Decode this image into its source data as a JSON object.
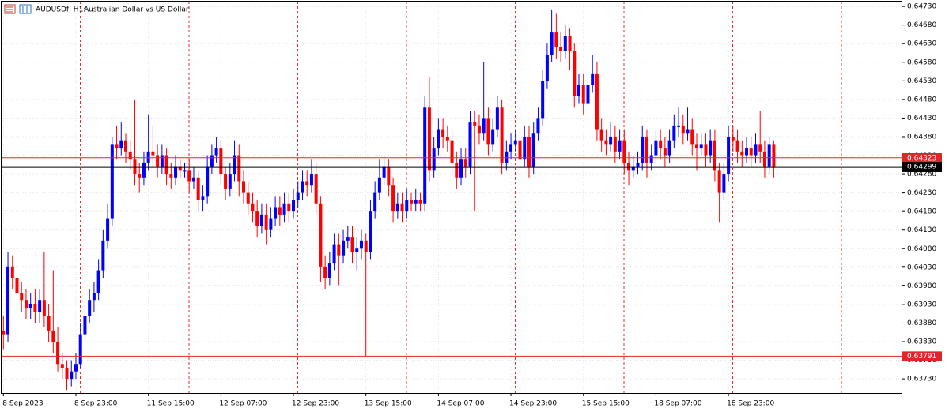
{
  "chart_data": {
    "type": "candlestick",
    "title": "AUDUSDf, H1:",
    "subtitle": "Australian Dollar vs US Dollar",
    "categories": [
      "8 Sep 2023",
      null,
      null,
      null,
      null,
      null,
      null,
      null,
      null,
      null,
      null,
      null,
      null,
      null,
      null,
      null,
      "8 Sep 23:00",
      null,
      null,
      null,
      null,
      null,
      null,
      null,
      null,
      null,
      null,
      null,
      null,
      null,
      null,
      null,
      "11 Sep 15:00",
      null,
      null,
      null,
      null,
      null,
      null,
      null,
      null,
      null,
      null,
      null,
      null,
      null,
      null,
      null,
      "12 Sep 07:00",
      null,
      null,
      null,
      null,
      null,
      null,
      null,
      null,
      null,
      null,
      null,
      null,
      null,
      null,
      null,
      "12 Sep 23:00",
      null,
      null,
      null,
      null,
      null,
      null,
      null,
      null,
      null,
      null,
      null,
      null,
      null,
      null,
      null,
      "13 Sep 15:00",
      null,
      null,
      null,
      null,
      null,
      null,
      null,
      null,
      null,
      null,
      null,
      null,
      null,
      null,
      null,
      "14 Sep 07:00",
      null,
      null,
      null,
      null,
      null,
      null,
      null,
      null,
      null,
      null,
      null,
      null,
      null,
      null,
      null,
      "14 Sep 23:00",
      null,
      null,
      null,
      null,
      null,
      null,
      null,
      null,
      null,
      null,
      null,
      null,
      null,
      null,
      null,
      "15 Sep 15:00",
      null,
      null,
      null,
      null,
      null,
      null,
      null,
      null,
      null,
      null,
      null,
      null,
      null,
      null,
      null,
      "18 Sep 07:00",
      null,
      null,
      null,
      null,
      null,
      null,
      null,
      null,
      null,
      null,
      null,
      null,
      null,
      null,
      null,
      "18 Sep 23:00",
      null,
      null,
      null,
      null,
      null,
      null,
      null,
      null,
      null,
      null
    ],
    "open": [
      0.6386,
      0.6385,
      0.6403,
      0.64,
      0.6396,
      0.6394,
      0.6392,
      0.6393,
      0.6391,
      0.6394,
      0.639,
      0.6386,
      0.6383,
      0.6377,
      0.6376,
      0.6373,
      0.6375,
      0.6377,
      0.6385,
      0.639,
      0.6394,
      0.6396,
      0.6402,
      0.641,
      0.6416,
      0.6436,
      0.6435,
      0.6437,
      0.6434,
      0.6432,
      0.6428,
      0.6427,
      0.6431,
      0.6434,
      0.6433,
      0.643,
      0.6433,
      0.6428,
      0.6427,
      0.643,
      0.6429,
      0.6429,
      0.6426,
      0.6427,
      0.6421,
      0.6422,
      0.643,
      0.6433,
      0.6435,
      0.6428,
      0.6424,
      0.6428,
      0.6433,
      0.6426,
      0.6423,
      0.642,
      0.6418,
      0.6414,
      0.6417,
      0.6413,
      0.6416,
      0.6419,
      0.6417,
      0.642,
      0.6418,
      0.6421,
      0.6423,
      0.6426,
      0.6425,
      0.6428,
      0.642,
      0.6403,
      0.64,
      0.6404,
      0.6409,
      0.6406,
      0.641,
      0.6411,
      0.6407,
      0.6408,
      0.641,
      0.6407,
      0.6418,
      0.6423,
      0.6427,
      0.643,
      0.6425,
      0.6418,
      0.642,
      0.6418,
      0.6421,
      0.642,
      0.6421,
      0.642,
      0.6446,
      0.6429,
      0.6435,
      0.644,
      0.6438,
      0.6437,
      0.6431,
      0.6427,
      0.6432,
      0.643,
      0.6442,
      0.6441,
      0.6439,
      0.6443,
      0.6436,
      0.644,
      0.6446,
      0.6431,
      0.6434,
      0.6436,
      0.6437,
      0.6432,
      0.6438,
      0.643,
      0.6439,
      0.6443,
      0.6453,
      0.646,
      0.6466,
      0.6462,
      0.6461,
      0.6465,
      0.6461,
      0.6449,
      0.6452,
      0.6447,
      0.6452,
      0.6455,
      0.644,
      0.6437,
      0.6436,
      0.6438,
      0.6434,
      0.6437,
      0.6431,
      0.6429,
      0.643,
      0.6431,
      0.6438,
      0.6431,
      0.6433,
      0.6437,
      0.6435,
      0.6433,
      0.6437,
      0.6441,
      0.6441,
      0.6439,
      0.644,
      0.6436,
      0.6435,
      0.6436,
      0.6433,
      0.6437,
      0.6429,
      0.6423,
      0.6428,
      0.6438,
      0.6437,
      0.6434,
      0.6433,
      0.6435,
      0.6433,
      0.6436,
      0.6434,
      0.643,
      0.6436
    ],
    "high": [
      0.639,
      0.6407,
      0.6406,
      0.6402,
      0.6399,
      0.6397,
      0.6396,
      0.6397,
      0.6397,
      0.6407,
      0.6393,
      0.6402,
      0.6387,
      0.638,
      0.6378,
      0.6378,
      0.638,
      0.6388,
      0.6393,
      0.6397,
      0.6399,
      0.6405,
      0.6413,
      0.642,
      0.6438,
      0.6441,
      0.6442,
      0.6439,
      0.6437,
      0.6448,
      0.6431,
      0.6434,
      0.6444,
      0.6441,
      0.6436,
      0.6436,
      0.6435,
      0.6431,
      0.6433,
      0.6432,
      0.6431,
      0.6432,
      0.643,
      0.6429,
      0.6425,
      0.6433,
      0.6436,
      0.6438,
      0.6437,
      0.643,
      0.6431,
      0.6437,
      0.6436,
      0.6429,
      0.6426,
      0.6423,
      0.6421,
      0.642,
      0.642,
      0.6419,
      0.6422,
      0.6422,
      0.6423,
      0.6423,
      0.6424,
      0.6426,
      0.6429,
      0.6429,
      0.6432,
      0.6431,
      0.6422,
      0.6406,
      0.6407,
      0.6412,
      0.6412,
      0.6413,
      0.6414,
      0.6414,
      0.6411,
      0.6413,
      0.6412,
      0.6421,
      0.6426,
      0.6432,
      0.6433,
      0.6432,
      0.6427,
      0.6423,
      0.6423,
      0.6424,
      0.6423,
      0.6424,
      0.6423,
      0.6449,
      0.6454,
      0.6438,
      0.6443,
      0.6443,
      0.6441,
      0.644,
      0.6434,
      0.6435,
      0.6435,
      0.6445,
      0.6445,
      0.6444,
      0.6458,
      0.6446,
      0.6443,
      0.6449,
      0.6448,
      0.6437,
      0.6439,
      0.644,
      0.644,
      0.6441,
      0.6441,
      0.6442,
      0.6446,
      0.6456,
      0.6463,
      0.6472,
      0.6471,
      0.6466,
      0.6468,
      0.6467,
      0.6463,
      0.6455,
      0.6455,
      0.6455,
      0.646,
      0.6458,
      0.6443,
      0.644,
      0.6442,
      0.6441,
      0.644,
      0.644,
      0.6434,
      0.6433,
      0.6434,
      0.6441,
      0.644,
      0.6436,
      0.644,
      0.644,
      0.6438,
      0.644,
      0.6444,
      0.6446,
      0.6444,
      0.6446,
      0.6443,
      0.6439,
      0.6439,
      0.6439,
      0.644,
      0.644,
      0.6431,
      0.6431,
      0.6441,
      0.6441,
      0.644,
      0.6437,
      0.6438,
      0.6438,
      0.6439,
      0.6445,
      0.6437,
      0.6438,
      0.6437
    ],
    "low": [
      0.6381,
      0.6383,
      0.6397,
      0.6393,
      0.6391,
      0.6389,
      0.6389,
      0.6388,
      0.6388,
      0.6387,
      0.6383,
      0.638,
      0.6375,
      0.6373,
      0.637,
      0.6371,
      0.6373,
      0.6376,
      0.6383,
      0.6388,
      0.6391,
      0.6394,
      0.64,
      0.6408,
      0.6414,
      0.6432,
      0.6433,
      0.6431,
      0.6429,
      0.6425,
      0.6423,
      0.6425,
      0.6429,
      0.643,
      0.6427,
      0.6428,
      0.6425,
      0.6424,
      0.6425,
      0.6427,
      0.6427,
      0.6423,
      0.6424,
      0.6418,
      0.6418,
      0.642,
      0.6428,
      0.6431,
      0.6425,
      0.6421,
      0.6422,
      0.6426,
      0.6422,
      0.642,
      0.6417,
      0.6415,
      0.6411,
      0.6412,
      0.6409,
      0.6411,
      0.6414,
      0.6414,
      0.6415,
      0.6415,
      0.6416,
      0.6419,
      0.6421,
      0.6422,
      0.6423,
      0.6417,
      0.6399,
      0.6397,
      0.6398,
      0.6402,
      0.6398,
      0.6404,
      0.6408,
      0.6404,
      0.6402,
      0.6405,
      0.63791,
      0.6405,
      0.6416,
      0.6421,
      0.6425,
      0.6422,
      0.6415,
      0.6416,
      0.6415,
      0.6416,
      0.6418,
      0.6418,
      0.6418,
      0.6418,
      0.6426,
      0.6427,
      0.6433,
      0.6435,
      0.6434,
      0.6428,
      0.6424,
      0.6425,
      0.6427,
      0.6428,
      0.6418,
      0.6436,
      0.6437,
      0.6433,
      0.6434,
      0.6438,
      0.6428,
      0.6429,
      0.6432,
      0.6434,
      0.6429,
      0.643,
      0.6427,
      0.6428,
      0.6437,
      0.6441,
      0.6451,
      0.6458,
      0.6459,
      0.6458,
      0.6459,
      0.6456,
      0.6446,
      0.6447,
      0.6444,
      0.6445,
      0.645,
      0.6437,
      0.6434,
      0.6433,
      0.6434,
      0.6431,
      0.6432,
      0.6428,
      0.6425,
      0.6427,
      0.6428,
      0.6429,
      0.6427,
      0.6429,
      0.6431,
      0.6432,
      0.643,
      0.6431,
      0.6435,
      0.6438,
      0.6436,
      0.6437,
      0.6433,
      0.6429,
      0.6433,
      0.643,
      0.6431,
      0.6426,
      0.6415,
      0.6421,
      0.6426,
      0.6434,
      0.6431,
      0.643,
      0.6431,
      0.643,
      0.6431,
      0.6431,
      0.6427,
      0.6428,
      0.6427
    ],
    "close": [
      0.6385,
      0.6403,
      0.64,
      0.6396,
      0.6394,
      0.6392,
      0.6393,
      0.6391,
      0.6394,
      0.639,
      0.6386,
      0.6383,
      0.6377,
      0.6376,
      0.6373,
      0.6375,
      0.6377,
      0.6385,
      0.639,
      0.6394,
      0.6396,
      0.6402,
      0.641,
      0.6416,
      0.6436,
      0.6435,
      0.6437,
      0.6434,
      0.6432,
      0.6428,
      0.6427,
      0.6431,
      0.6434,
      0.6433,
      0.643,
      0.6433,
      0.6428,
      0.6427,
      0.643,
      0.6429,
      0.6429,
      0.6426,
      0.6427,
      0.6421,
      0.6422,
      0.643,
      0.6433,
      0.6435,
      0.6428,
      0.6424,
      0.6428,
      0.6433,
      0.6426,
      0.6423,
      0.642,
      0.6418,
      0.6414,
      0.6417,
      0.6413,
      0.6416,
      0.6419,
      0.6417,
      0.642,
      0.6418,
      0.6421,
      0.6423,
      0.6426,
      0.6425,
      0.6428,
      0.642,
      0.6403,
      0.64,
      0.6404,
      0.6409,
      0.6406,
      0.641,
      0.6411,
      0.6407,
      0.6408,
      0.641,
      0.6407,
      0.6418,
      0.6423,
      0.6427,
      0.643,
      0.6425,
      0.6418,
      0.642,
      0.6418,
      0.6421,
      0.642,
      0.6421,
      0.642,
      0.6446,
      0.6429,
      0.6435,
      0.644,
      0.6438,
      0.6437,
      0.6431,
      0.6427,
      0.6432,
      0.643,
      0.6442,
      0.6441,
      0.6439,
      0.6443,
      0.6436,
      0.644,
      0.6446,
      0.6431,
      0.6434,
      0.6436,
      0.6437,
      0.6432,
      0.6438,
      0.643,
      0.6439,
      0.6443,
      0.6453,
      0.646,
      0.6466,
      0.6462,
      0.6461,
      0.6465,
      0.6461,
      0.6449,
      0.6452,
      0.6447,
      0.6452,
      0.6455,
      0.644,
      0.6437,
      0.6436,
      0.6438,
      0.6434,
      0.6437,
      0.6431,
      0.6429,
      0.643,
      0.6431,
      0.6438,
      0.6431,
      0.6433,
      0.6437,
      0.6435,
      0.6433,
      0.6437,
      0.6441,
      0.6441,
      0.6439,
      0.644,
      0.6436,
      0.6435,
      0.6436,
      0.6433,
      0.6437,
      0.6429,
      0.6423,
      0.6428,
      0.6438,
      0.6437,
      0.6434,
      0.6433,
      0.6435,
      0.6433,
      0.6436,
      0.6434,
      0.643,
      0.6436,
      0.64299
    ],
    "up_color": "#0000ff",
    "down_color": "#ff0000",
    "ylim": [
      0.63692,
      0.64743
    ],
    "yticks": [
      {
        "value": 0.6473,
        "label": "0.64730"
      },
      {
        "value": 0.6468,
        "label": "0.64680"
      },
      {
        "value": 0.6463,
        "label": "0.64630"
      },
      {
        "value": 0.6458,
        "label": "0.64580"
      },
      {
        "value": 0.6453,
        "label": "0.64530"
      },
      {
        "value": 0.6448,
        "label": "0.64480"
      },
      {
        "value": 0.6443,
        "label": "0.64430"
      },
      {
        "value": 0.6438,
        "label": "0.64380"
      },
      {
        "value": 0.6433,
        "label": "0.64330"
      },
      {
        "value": 0.6428,
        "label": "0.64280"
      },
      {
        "value": 0.6423,
        "label": "0.64230"
      },
      {
        "value": 0.6418,
        "label": "0.64180"
      },
      {
        "value": 0.6413,
        "label": "0.64130"
      },
      {
        "value": 0.6408,
        "label": "0.64080"
      },
      {
        "value": 0.6403,
        "label": "0.64030"
      },
      {
        "value": 0.6398,
        "label": "0.63980"
      },
      {
        "value": 0.6393,
        "label": "0.63930"
      },
      {
        "value": 0.6388,
        "label": "0.63880"
      },
      {
        "value": 0.6383,
        "label": "0.63830"
      },
      {
        "value": 0.6378,
        "label": "0.63780"
      },
      {
        "value": 0.6373,
        "label": "0.63730"
      }
    ],
    "price_lines": [
      0.64323,
      0.63791
    ],
    "price_line_color": "#e0262b",
    "bid": 0.64299,
    "bid_color": "#000000",
    "grid": true
  }
}
